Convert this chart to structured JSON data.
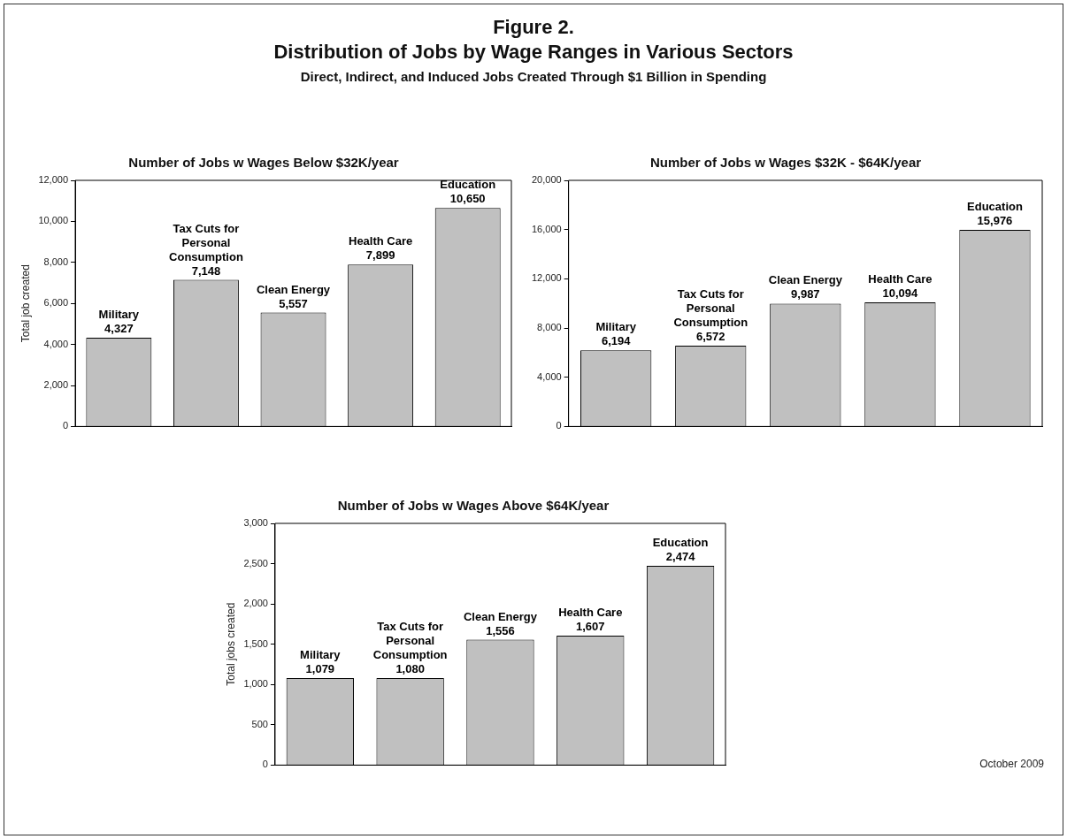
{
  "chart_data": [
    {
      "type": "bar",
      "title": "Number of Jobs w Wages Below $32K/year",
      "ylabel": "Total job created",
      "annotations": [
        "Figure 2.",
        "Distribution of Jobs by Wage Ranges in Various Sectors",
        "Direct, Indirect, and Induced Jobs Created Through $1 Billion in Spending"
      ],
      "categories": [
        "Military",
        "Tax Cuts for Personal Consumption",
        "Clean Energy",
        "Health Care",
        "Education"
      ],
      "values": [
        4327,
        7148,
        5557,
        7899,
        10650
      ],
      "value_labels": [
        "4,327",
        "7,148",
        "5,557",
        "7,899",
        "10,650"
      ],
      "color": "#c0c0c0",
      "ylim": [
        0,
        12000
      ],
      "yticks": [
        {
          "value": 0,
          "label": "0"
        },
        {
          "value": 2000,
          "label": "2,000"
        },
        {
          "value": 4000,
          "label": "4,000"
        },
        {
          "value": 6000,
          "label": "6,000"
        },
        {
          "value": 8000,
          "label": "8,000"
        },
        {
          "value": 10000,
          "label": "10,000"
        },
        {
          "value": 12000,
          "label": "12,000"
        }
      ],
      "grid": false,
      "legend": false,
      "tick_labels": "y"
    },
    {
      "type": "bar",
      "title": "Number of Jobs w Wages $32K - $64K/year",
      "categories": [
        "Military",
        "Tax Cuts for Personal Consumption",
        "Clean Energy",
        "Health Care",
        "Education"
      ],
      "values": [
        6194,
        6572,
        9987,
        10094,
        15976
      ],
      "value_labels": [
        "6,194",
        "6,572",
        "9,987",
        "10,094",
        "15,976"
      ],
      "color": "#c0c0c0",
      "ylim": [
        0,
        20000
      ],
      "yticks": [
        {
          "value": 0,
          "label": "0"
        },
        {
          "value": 4000,
          "label": "4,000"
        },
        {
          "value": 8000,
          "label": "8,000"
        },
        {
          "value": 12000,
          "label": "12,000"
        },
        {
          "value": 16000,
          "label": "16,000"
        },
        {
          "value": 20000,
          "label": "20,000"
        }
      ],
      "grid": false,
      "legend": false,
      "tick_labels": "y"
    },
    {
      "type": "bar",
      "title": "Number of Jobs w Wages Above $64K/year",
      "ylabel": "Total jobs created",
      "annotations": [
        "October 2009"
      ],
      "categories": [
        "Military",
        "Tax Cuts for Personal Consumption",
        "Clean Energy",
        "Health Care",
        "Education"
      ],
      "values": [
        1079,
        1080,
        1556,
        1607,
        2474
      ],
      "value_labels": [
        "1,079",
        "1,080",
        "1,556",
        "1,607",
        "2,474"
      ],
      "color": "#c0c0c0",
      "ylim": [
        0,
        3000
      ],
      "yticks": [
        {
          "value": 0,
          "label": "0"
        },
        {
          "value": 500,
          "label": "500"
        },
        {
          "value": 1000,
          "label": "1,000"
        },
        {
          "value": 1500,
          "label": "1,500"
        },
        {
          "value": 2000,
          "label": "2,000"
        },
        {
          "value": 2500,
          "label": "2,500"
        },
        {
          "value": 3000,
          "label": "3,000"
        }
      ],
      "grid": false,
      "legend": false,
      "tick_labels": "y"
    }
  ]
}
